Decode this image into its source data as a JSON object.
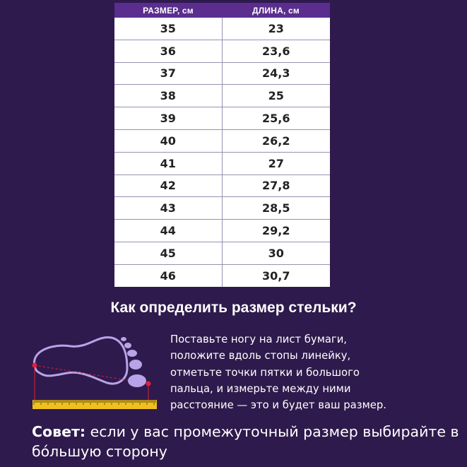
{
  "table": {
    "headers": [
      "РАЗМЕР, см",
      "ДЛИНА, см"
    ],
    "rows": [
      [
        "35",
        "23"
      ],
      [
        "36",
        "23,6"
      ],
      [
        "37",
        "24,3"
      ],
      [
        "38",
        "25"
      ],
      [
        "39",
        "25,6"
      ],
      [
        "40",
        "26,2"
      ],
      [
        "41",
        "27"
      ],
      [
        "42",
        "27,8"
      ],
      [
        "43",
        "28,5"
      ],
      [
        "44",
        "29,2"
      ],
      [
        "45",
        "30"
      ],
      [
        "46",
        "30,7"
      ]
    ]
  },
  "howto": {
    "heading": "Как определить размер стельки?",
    "text": "Поставьте ногу на лист бумаги,\nположите вдоль стопы линейку,\nотметьте точки пятки и большого\nпальца, и измерьте между ними\nрасстояние — это и будет ваш размер."
  },
  "tip": {
    "label": "Совет:",
    "text": " если у вас промежуточный размер выбирайте в бóльшую сторону"
  },
  "colors": {
    "background": "#2e1a4c",
    "table_header": "#5a2d8e",
    "illustration_accent": "#b9a3e8",
    "ruler": "#f0c020",
    "marker": "#e0203a"
  },
  "icons": [
    "foot-outline-icon",
    "toe-icon",
    "ruler-icon",
    "heel-marker-icon",
    "toe-marker-icon"
  ]
}
